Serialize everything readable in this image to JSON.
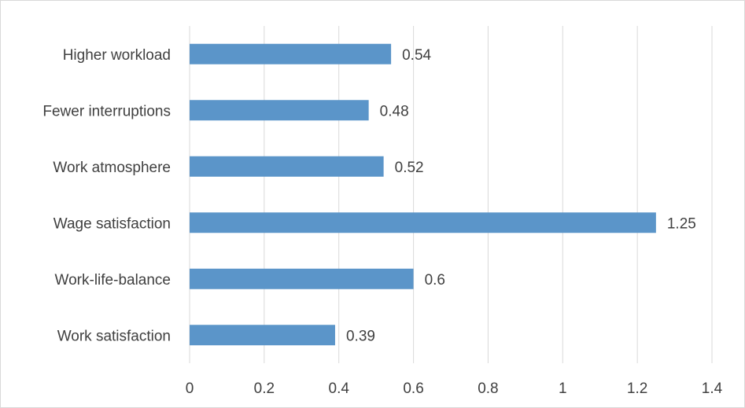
{
  "chart_data": {
    "type": "bar",
    "orientation": "horizontal",
    "title": "",
    "xlabel": "",
    "ylabel": "",
    "categories": [
      "Higher workload",
      "Fewer interruptions",
      "Work atmosphere",
      "Wage satisfaction",
      "Work-life-balance",
      "Work satisfaction"
    ],
    "values": [
      0.54,
      0.48,
      0.52,
      1.25,
      0.6,
      0.39
    ],
    "value_labels": [
      "0.54",
      "0.48",
      "0.52",
      "1.25",
      "0.6",
      "0.39"
    ],
    "xlim": [
      0,
      1.4
    ],
    "x_ticks": [
      0,
      0.2,
      0.4,
      0.6,
      0.8,
      1,
      1.2,
      1.4
    ],
    "x_tick_labels": [
      "0",
      "0.2",
      "0.4",
      "0.6",
      "0.8",
      "1",
      "1.2",
      "1.4"
    ],
    "grid": "vertical",
    "legend": "none",
    "colors": {
      "bar": "#5b95c9",
      "grid": "#d9d9d9",
      "text": "#404040"
    }
  }
}
